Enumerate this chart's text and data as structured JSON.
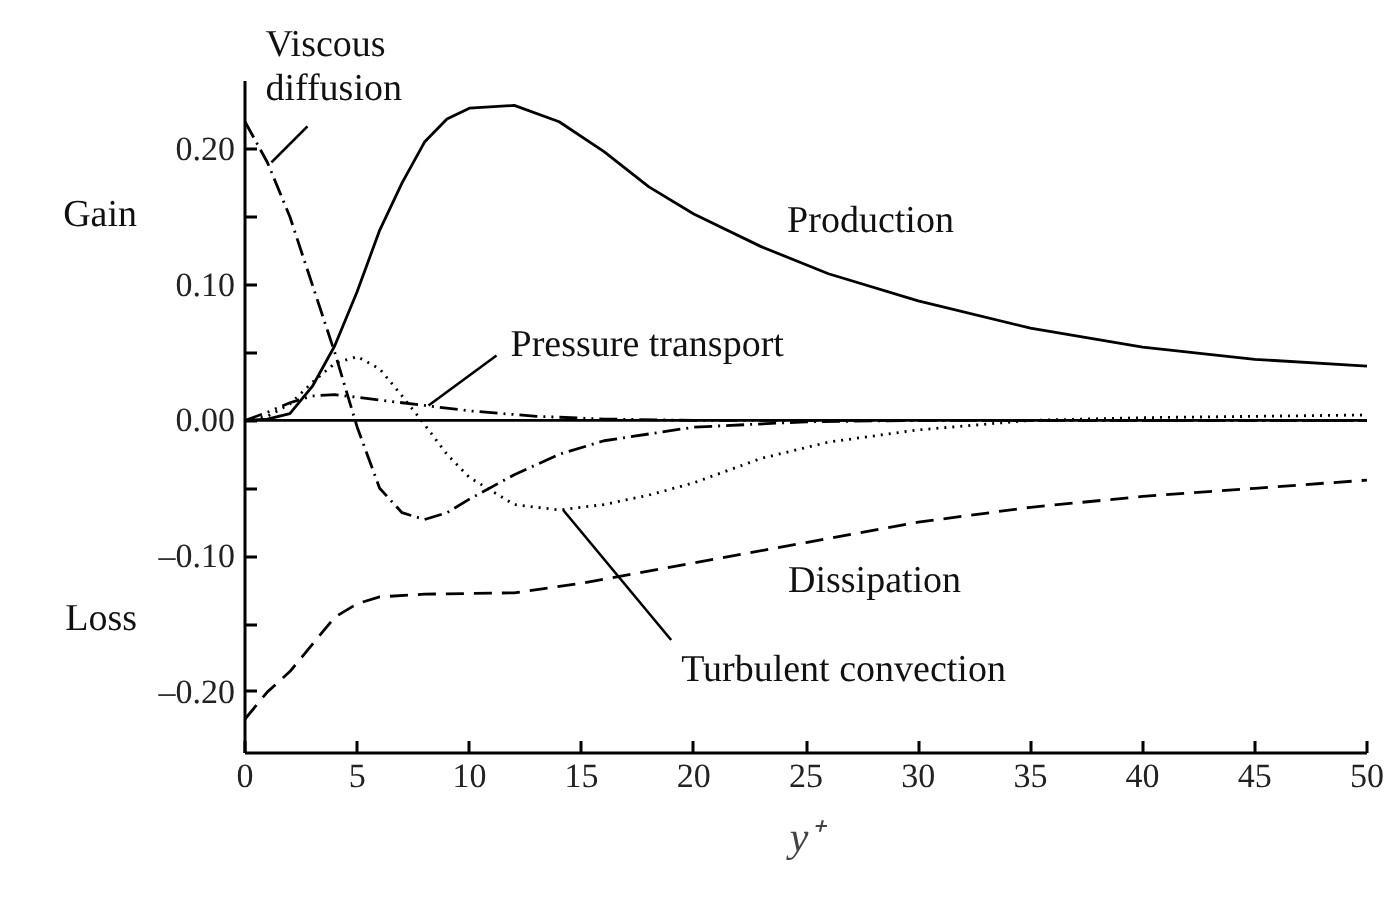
{
  "chart_data": {
    "type": "line",
    "xlabel": "y⁺",
    "xlim": [
      0,
      50
    ],
    "xticks": [
      0,
      5,
      10,
      15,
      20,
      25,
      30,
      35,
      40,
      45,
      50
    ],
    "ylim": [
      -0.245,
      0.25
    ],
    "yticks": [
      {
        "value": -0.2,
        "label": "–0.20"
      },
      {
        "value": -0.15,
        "label": null
      },
      {
        "value": -0.1,
        "label": "–0.10"
      },
      {
        "value": -0.05,
        "label": null
      },
      {
        "value": 0,
        "label": "0.00"
      },
      {
        "value": 0.05,
        "label": null
      },
      {
        "value": 0.1,
        "label": "0.10"
      },
      {
        "value": 0.15,
        "label": null
      },
      {
        "value": 0.2,
        "label": "0.20"
      }
    ],
    "grid": false,
    "marker": "none",
    "ref_lines": [
      {
        "axis": "y",
        "value": 0,
        "color": "#000000",
        "line_style": "solid"
      }
    ],
    "annotations": [
      "Gain",
      "Loss"
    ],
    "series": [
      {
        "name": "Production",
        "color": "#000000",
        "line_style": "solid",
        "x": [
          0,
          1,
          2,
          3,
          4,
          5,
          6,
          7,
          8,
          9,
          10,
          12,
          14,
          16,
          18,
          20,
          23,
          26,
          30,
          35,
          40,
          45,
          50
        ],
        "values": [
          0,
          0.001,
          0.005,
          0.025,
          0.055,
          0.095,
          0.14,
          0.175,
          0.205,
          0.222,
          0.23,
          0.232,
          0.22,
          0.198,
          0.172,
          0.152,
          0.128,
          0.108,
          0.088,
          0.068,
          0.054,
          0.045,
          0.04
        ]
      },
      {
        "name": "Dissipation",
        "color": "#000000",
        "line_style": "dashed",
        "x": [
          0,
          1,
          2,
          3,
          4,
          5,
          6,
          8,
          12,
          15,
          20,
          25,
          30,
          35,
          40,
          45,
          50
        ],
        "values": [
          -0.22,
          -0.2,
          -0.185,
          -0.165,
          -0.145,
          -0.135,
          -0.13,
          -0.128,
          -0.127,
          -0.12,
          -0.105,
          -0.09,
          -0.075,
          -0.064,
          -0.056,
          -0.05,
          -0.044
        ]
      },
      {
        "name": "Viscous\ndiffusion",
        "color": "#000000",
        "line_style": "dashdot",
        "x": [
          0,
          1,
          2,
          3,
          4,
          5,
          6,
          7,
          8,
          9,
          10,
          12,
          14,
          16,
          20,
          25,
          30,
          50
        ],
        "values": [
          0.22,
          0.19,
          0.15,
          0.1,
          0.05,
          -0.005,
          -0.05,
          -0.068,
          -0.073,
          -0.068,
          -0.058,
          -0.04,
          -0.025,
          -0.015,
          -0.005,
          -0.001,
          0,
          0
        ]
      },
      {
        "name": "Pressure transport",
        "color": "#000000",
        "line_style": "dashdotdot",
        "x": [
          0,
          1,
          2,
          3,
          4,
          6,
          8,
          10,
          13,
          16,
          20,
          50
        ],
        "values": [
          0,
          0.006,
          0.013,
          0.018,
          0.019,
          0.015,
          0.011,
          0.007,
          0.003,
          0.001,
          0,
          0
        ]
      },
      {
        "name": "Turbulent convection",
        "color": "#000000",
        "line_style": "dotted",
        "x": [
          0,
          1,
          2,
          3,
          4,
          5,
          6,
          7,
          8,
          9,
          10,
          12,
          14,
          16,
          18,
          20,
          23,
          26,
          30,
          35,
          40,
          50
        ],
        "values": [
          0,
          0.003,
          0.012,
          0.028,
          0.042,
          0.047,
          0.038,
          0.018,
          -0.003,
          -0.025,
          -0.042,
          -0.062,
          -0.066,
          -0.062,
          -0.055,
          -0.046,
          -0.028,
          -0.016,
          -0.007,
          0,
          0.002,
          0.004
        ]
      }
    ]
  }
}
